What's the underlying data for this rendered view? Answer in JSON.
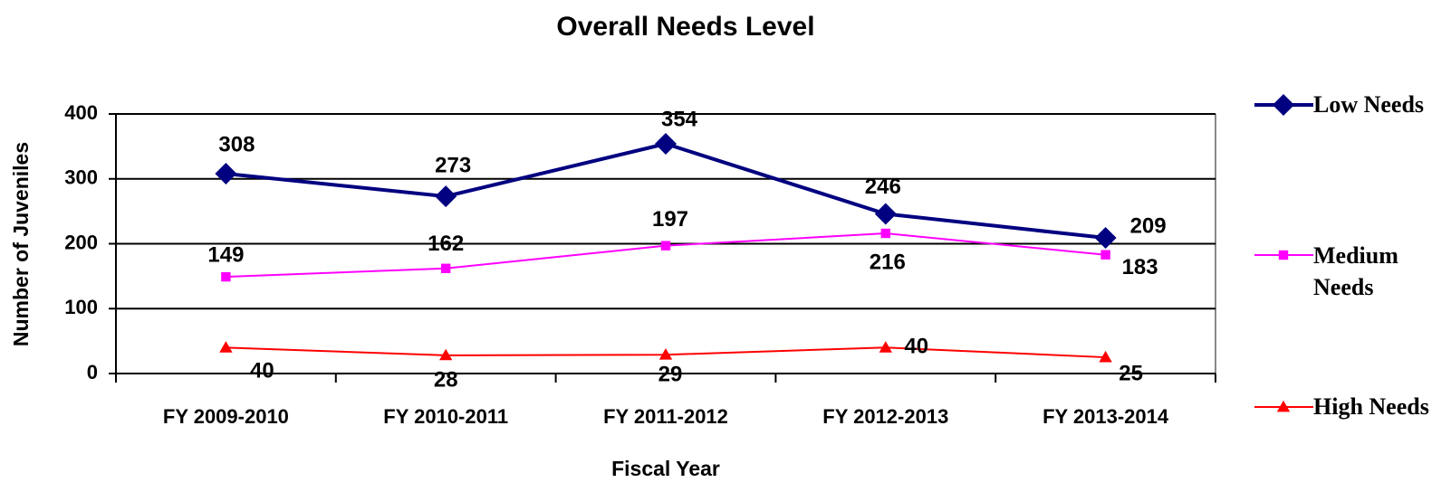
{
  "chart_data": {
    "type": "line",
    "title": "Overall Needs Level",
    "xlabel": "Fiscal Year",
    "ylabel": "Number of Juveniles",
    "categories": [
      "FY 2009-2010",
      "FY 2010-2011",
      "FY 2011-2012",
      "FY 2012-2013",
      "FY 2013-2014"
    ],
    "series": [
      {
        "name": "Low Needs",
        "color": "#000080",
        "marker": "diamond",
        "values": [
          308,
          273,
          354,
          246,
          209
        ]
      },
      {
        "name": "Medium Needs",
        "color": "#ff00ff",
        "marker": "square",
        "values": [
          149,
          162,
          197,
          216,
          183
        ]
      },
      {
        "name": "High Needs",
        "color": "#ff0000",
        "marker": "triangle",
        "values": [
          40,
          28,
          29,
          40,
          25
        ]
      }
    ],
    "ylim": [
      0,
      400
    ],
    "yticks": [
      0,
      100,
      200,
      300,
      400
    ],
    "grid": true,
    "legend": "right"
  }
}
